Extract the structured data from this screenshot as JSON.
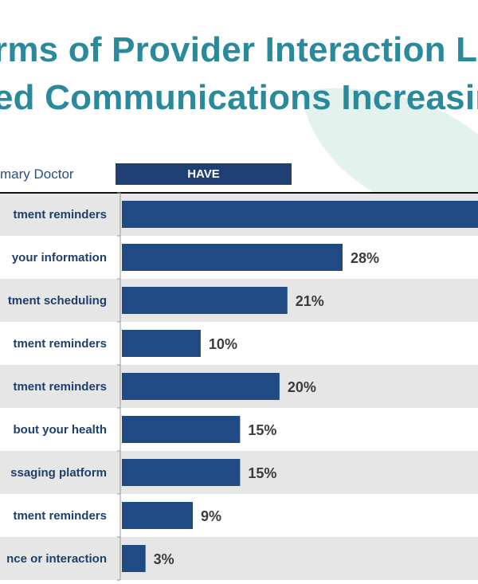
{
  "title_lines": [
    "rms of Provider Interaction L",
    "ed Communications Increasin"
  ],
  "subgroup_label": "mary Doctor",
  "column_header": "HAVE",
  "colors": {
    "title": "#2a8a9c",
    "bar": "#1f4a84",
    "header_box": "#1f3f74",
    "row_shade": "#e6e6e6",
    "category_text": "#1e3f6e",
    "value_text": "#3c3c3c"
  },
  "chart_data": {
    "type": "bar",
    "orientation": "horizontal",
    "categories": [
      "tment reminders",
      "your information",
      "tment scheduling",
      "tment reminders",
      "tment reminders",
      "bout your health",
      "ssaging platform",
      "tment reminders",
      "nce or interaction"
    ],
    "series": [
      {
        "values": [
          null,
          28,
          21,
          10,
          20,
          15,
          15,
          9,
          3
        ],
        "labels": [
          "",
          "28%",
          "21%",
          "10%",
          "20%",
          "15%",
          "15%",
          "9%",
          "3%"
        ]
      }
    ],
    "first_bar_truncated": true,
    "xlim": [
      0,
      30
    ],
    "row_shading": "alternating",
    "grid": false,
    "legend": "none"
  }
}
